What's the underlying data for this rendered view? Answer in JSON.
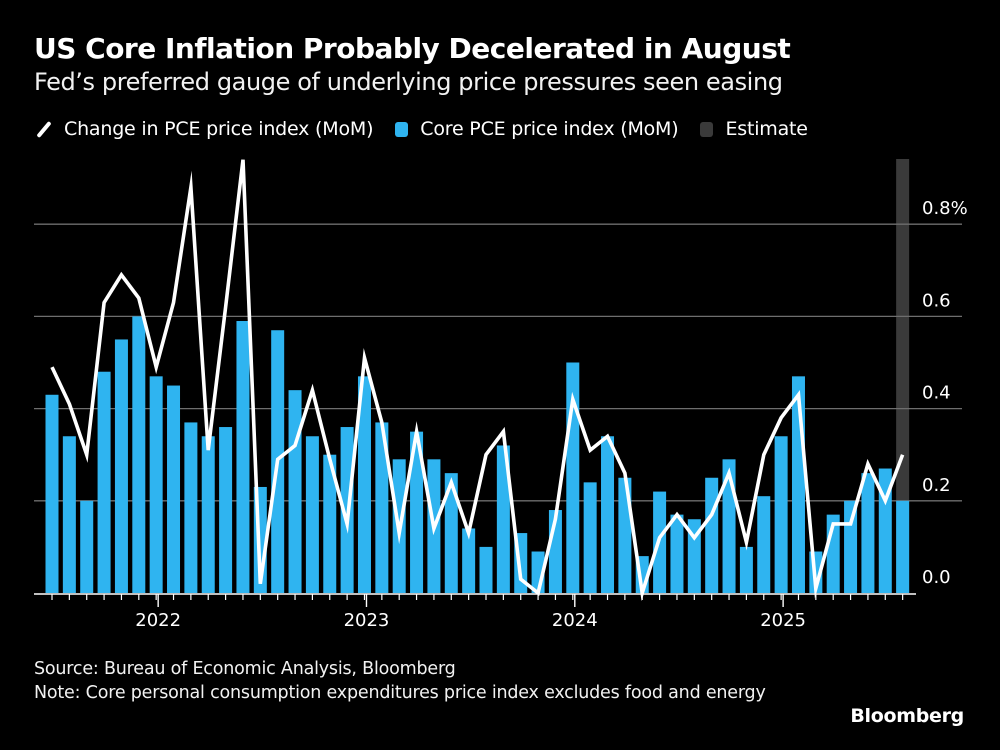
{
  "header": {
    "title": "US Core Inflation Probably Decelerated in August",
    "subtitle": "Fed’s preferred gauge of underlying price pressures seen easing"
  },
  "legend": [
    {
      "label": "Change in PCE price index (MoM)",
      "icon": "line-icon",
      "color": "#ffffff"
    },
    {
      "label": "Core PCE price index (MoM)",
      "icon": "square-icon",
      "color": "#2fb4f0"
    },
    {
      "label": "Estimate",
      "icon": "square-icon",
      "color": "#3a3a3a"
    }
  ],
  "footer": {
    "source": "Source: Bureau of Economic Analysis, Bloomberg",
    "note": "Note: Core personal consumption expenditures price index excludes food and energy",
    "brand": "Bloomberg"
  },
  "chart_data": {
    "type": "bar",
    "title": "US Core Inflation Probably Decelerated in August",
    "subtitle": "Fed’s preferred gauge of underlying price pressures seen easing",
    "xlabel": "",
    "ylabel": "",
    "ylim": [
      0,
      0.9
    ],
    "y_ticks": [
      0.0,
      0.2,
      0.4,
      0.6,
      0.8
    ],
    "y_tick_labels": [
      "0.0",
      "0.2",
      "0.4",
      "0.6",
      "0.8%"
    ],
    "y_axis_side": "right",
    "grid": true,
    "legend_position": "top-left",
    "x_year_labels": [
      {
        "label": "2022",
        "month_index": 6
      },
      {
        "label": "2023",
        "month_index": 18
      },
      {
        "label": "2024",
        "month_index": 30
      },
      {
        "label": "2025",
        "month_index": 42
      }
    ],
    "categories": [
      "2021-07",
      "2021-08",
      "2021-09",
      "2021-10",
      "2021-11",
      "2021-12",
      "2022-01",
      "2022-02",
      "2022-03",
      "2022-04",
      "2022-05",
      "2022-06",
      "2022-07",
      "2022-08",
      "2022-09",
      "2022-10",
      "2022-11",
      "2022-12",
      "2023-01",
      "2023-02",
      "2023-03",
      "2023-04",
      "2023-05",
      "2023-06",
      "2023-07",
      "2023-08",
      "2023-09",
      "2023-10",
      "2023-11",
      "2023-12",
      "2024-01",
      "2024-02",
      "2024-03",
      "2024-04",
      "2024-05",
      "2024-06",
      "2024-07",
      "2024-08",
      "2024-09",
      "2024-10",
      "2024-11",
      "2024-12",
      "2025-01",
      "2025-02",
      "2025-03",
      "2025-04",
      "2025-05",
      "2025-06",
      "2025-07",
      "2025-08"
    ],
    "estimate_category": "2025-08",
    "series": [
      {
        "name": "Core PCE price index (MoM)",
        "type": "bar",
        "color": "#2fb4f0",
        "values": [
          0.43,
          0.34,
          0.2,
          0.48,
          0.55,
          0.6,
          0.47,
          0.45,
          0.37,
          0.34,
          0.36,
          0.59,
          0.23,
          0.57,
          0.44,
          0.34,
          0.3,
          0.36,
          0.47,
          0.37,
          0.29,
          0.35,
          0.29,
          0.26,
          0.14,
          0.1,
          0.32,
          0.13,
          0.09,
          0.18,
          0.5,
          0.24,
          0.34,
          0.25,
          0.08,
          0.22,
          0.17,
          0.16,
          0.25,
          0.29,
          0.1,
          0.21,
          0.34,
          0.47,
          0.09,
          0.17,
          0.2,
          0.26,
          0.27,
          0.2
        ]
      },
      {
        "name": "Change in PCE price index (MoM)",
        "type": "line",
        "color": "#ffffff",
        "values": [
          0.49,
          0.41,
          0.3,
          0.63,
          0.69,
          0.64,
          0.49,
          0.63,
          0.88,
          0.31,
          0.62,
          0.94,
          0.02,
          0.29,
          0.32,
          0.44,
          0.29,
          0.15,
          0.51,
          0.37,
          0.13,
          0.35,
          0.14,
          0.24,
          0.13,
          0.3,
          0.35,
          0.03,
          0.0,
          0.16,
          0.42,
          0.31,
          0.34,
          0.26,
          0.0,
          0.12,
          0.17,
          0.12,
          0.17,
          0.26,
          0.11,
          0.3,
          0.38,
          0.43,
          0.01,
          0.15,
          0.15,
          0.28,
          0.2,
          0.3
        ]
      }
    ]
  }
}
